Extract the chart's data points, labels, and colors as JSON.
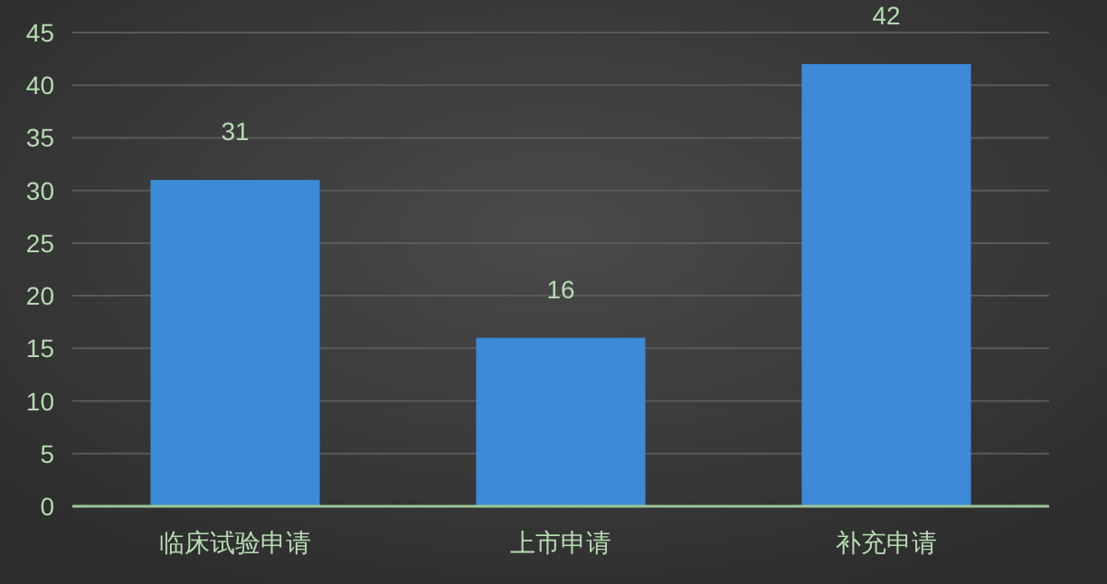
{
  "chart_data": {
    "type": "bar",
    "categories": [
      "临床试验申请",
      "上市申请",
      "补充申请"
    ],
    "values": [
      31,
      16,
      42
    ],
    "color": "#3d8ad8",
    "ylim": [
      0,
      45
    ],
    "yticks": [
      0,
      5,
      10,
      15,
      20,
      25,
      30,
      35,
      40,
      45
    ],
    "grid": "y",
    "data_labels": true
  }
}
